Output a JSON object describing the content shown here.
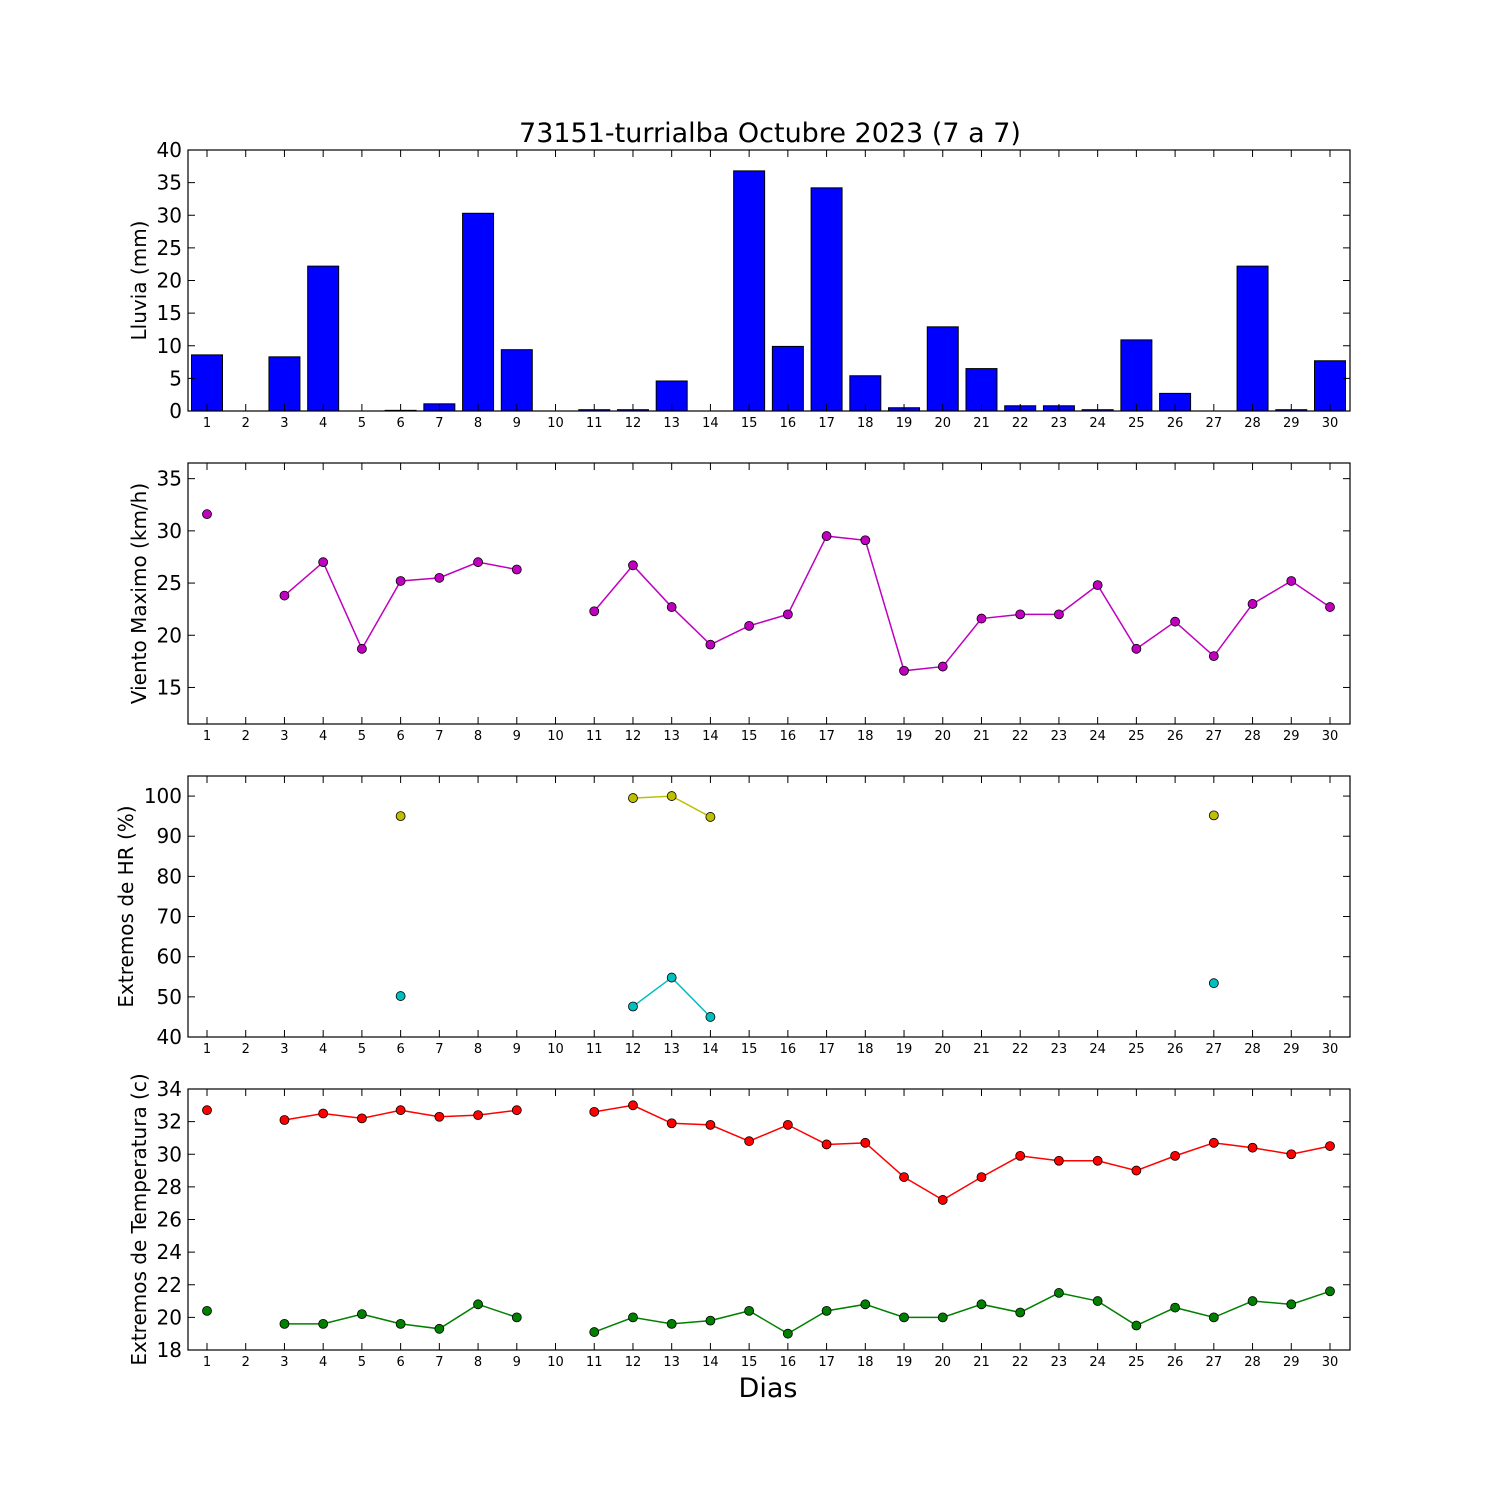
{
  "chart_data": [
    {
      "type": "bar",
      "title": "73151-turrialba Octubre 2023  (7 a 7)",
      "ylabel": "Lluvia (mm)",
      "xlabel": "",
      "x": [
        1,
        2,
        3,
        4,
        5,
        6,
        7,
        8,
        9,
        10,
        11,
        12,
        13,
        14,
        15,
        16,
        17,
        18,
        19,
        20,
        21,
        22,
        23,
        24,
        25,
        26,
        27,
        28,
        29,
        30
      ],
      "values": [
        8.6,
        0,
        8.3,
        22.2,
        0,
        0.1,
        1.1,
        30.3,
        9.4,
        0,
        0.2,
        0.2,
        4.6,
        0,
        36.8,
        9.9,
        34.2,
        5.4,
        0.5,
        12.9,
        6.5,
        0.8,
        0.8,
        0.2,
        10.9,
        2.7,
        0,
        22.2,
        0.2,
        7.7
      ],
      "ylim": [
        0,
        40
      ],
      "yticks": [
        0,
        5,
        10,
        15,
        20,
        25,
        30,
        35,
        40
      ],
      "colors": {
        "bar": "#0000ff"
      }
    },
    {
      "type": "line",
      "ylabel": "Viento Maximo (km/h)",
      "x": [
        1,
        2,
        3,
        4,
        5,
        6,
        7,
        8,
        9,
        10,
        11,
        12,
        13,
        14,
        15,
        16,
        17,
        18,
        19,
        20,
        21,
        22,
        23,
        24,
        25,
        26,
        27,
        28,
        29,
        30
      ],
      "series": [
        {
          "values": [
            31.6,
            null,
            23.8,
            27.0,
            18.7,
            25.2,
            25.5,
            27.0,
            26.3,
            null,
            22.3,
            26.7,
            22.7,
            19.1,
            20.9,
            22.0,
            29.5,
            29.1,
            16.6,
            17.0,
            21.6,
            22.0,
            22.0,
            24.8,
            18.7,
            21.3,
            18.0,
            23.0,
            25.2,
            22.7
          ],
          "color": "#bf00bf"
        }
      ],
      "ylim": [
        11.5,
        36.5
      ],
      "yticks": [
        15,
        20,
        25,
        30,
        35
      ]
    },
    {
      "type": "line",
      "ylabel": "Extremos de HR (%)",
      "x": [
        1,
        2,
        3,
        4,
        5,
        6,
        7,
        8,
        9,
        10,
        11,
        12,
        13,
        14,
        15,
        16,
        17,
        18,
        19,
        20,
        21,
        22,
        23,
        24,
        25,
        26,
        27,
        28,
        29,
        30
      ],
      "series": [
        {
          "values": [
            null,
            null,
            null,
            null,
            null,
            95,
            null,
            null,
            null,
            null,
            null,
            99.5,
            100,
            94.8,
            null,
            null,
            null,
            null,
            null,
            null,
            null,
            null,
            null,
            null,
            null,
            null,
            95.2,
            null,
            null,
            null
          ],
          "color": "#bfbf00"
        },
        {
          "values": [
            null,
            null,
            null,
            null,
            null,
            50.2,
            null,
            null,
            null,
            null,
            null,
            47.6,
            54.8,
            45,
            null,
            null,
            null,
            null,
            null,
            null,
            null,
            null,
            null,
            null,
            null,
            null,
            53.4,
            null,
            null,
            null
          ],
          "color": "#00bfbf"
        }
      ],
      "ylim": [
        40,
        105
      ],
      "yticks": [
        40,
        50,
        60,
        70,
        80,
        90,
        100
      ]
    },
    {
      "type": "line",
      "ylabel": "Extremos de Temperatura (c)",
      "xlabel": "Dias",
      "x": [
        1,
        2,
        3,
        4,
        5,
        6,
        7,
        8,
        9,
        10,
        11,
        12,
        13,
        14,
        15,
        16,
        17,
        18,
        19,
        20,
        21,
        22,
        23,
        24,
        25,
        26,
        27,
        28,
        29,
        30
      ],
      "series": [
        {
          "values": [
            32.7,
            null,
            32.1,
            32.5,
            32.2,
            32.7,
            32.3,
            32.4,
            32.7,
            null,
            32.6,
            33.0,
            31.9,
            31.8,
            30.8,
            31.8,
            30.6,
            30.7,
            28.6,
            27.2,
            28.6,
            29.9,
            29.6,
            29.6,
            29.0,
            29.9,
            30.7,
            30.4,
            30.0,
            30.5
          ],
          "color": "#ff0000"
        },
        {
          "values": [
            20.4,
            null,
            19.6,
            19.6,
            20.2,
            19.6,
            19.3,
            20.8,
            20.0,
            null,
            19.1,
            20.0,
            19.6,
            19.8,
            20.4,
            19.0,
            20.4,
            20.8,
            20.0,
            20.0,
            20.8,
            20.3,
            21.5,
            21.0,
            19.5,
            20.6,
            20.0,
            21.0,
            20.8,
            21.6
          ],
          "color": "#008000"
        }
      ],
      "ylim": [
        18,
        34
      ],
      "yticks": [
        18,
        20,
        22,
        24,
        26,
        28,
        30,
        32,
        34
      ]
    }
  ]
}
